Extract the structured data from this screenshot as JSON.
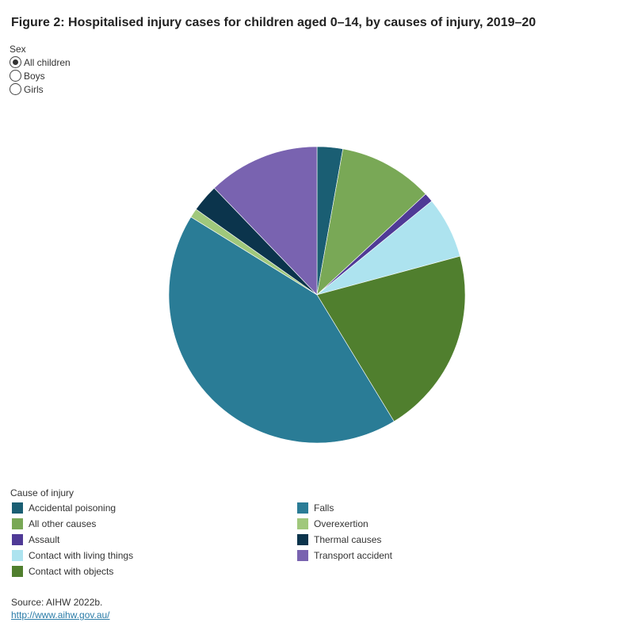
{
  "title": "Figure 2: Hospitalised injury cases for children aged 0–14, by causes of injury, 2019–20",
  "filter": {
    "label": "Sex",
    "options": [
      {
        "label": "All children",
        "selected": true
      },
      {
        "label": "Boys",
        "selected": false
      },
      {
        "label": "Girls",
        "selected": false
      }
    ]
  },
  "chart_data": {
    "type": "pie",
    "title": "Figure 2: Hospitalised injury cases for children aged 0–14, by causes of injury, 2019–20",
    "legend_title": "Cause of injury",
    "legend_placement": "bottom",
    "start": "12 o'clock, clockwise",
    "slices": [
      {
        "name": "Accidental poisoning",
        "value": 2.8,
        "color": "#1a5e73"
      },
      {
        "name": "All other causes",
        "value": 10.3,
        "color": "#79a856"
      },
      {
        "name": "Assault",
        "value": 1.0,
        "color": "#4f3a96"
      },
      {
        "name": "Contact with living things",
        "value": 6.7,
        "color": "#ade3ef"
      },
      {
        "name": "Contact with objects",
        "value": 20.5,
        "color": "#507f2e"
      },
      {
        "name": "Falls",
        "value": 42.5,
        "color": "#2a7c96"
      },
      {
        "name": "Overexertion",
        "value": 1.0,
        "color": "#a0c87c"
      },
      {
        "name": "Thermal causes",
        "value": 3.0,
        "color": "#0b344c"
      },
      {
        "name": "Transport accident",
        "value": 12.2,
        "color": "#7963b0"
      }
    ]
  },
  "source": {
    "text": "Source: AIHW 2022b.",
    "link": "http://www.aihw.gov.au/"
  }
}
